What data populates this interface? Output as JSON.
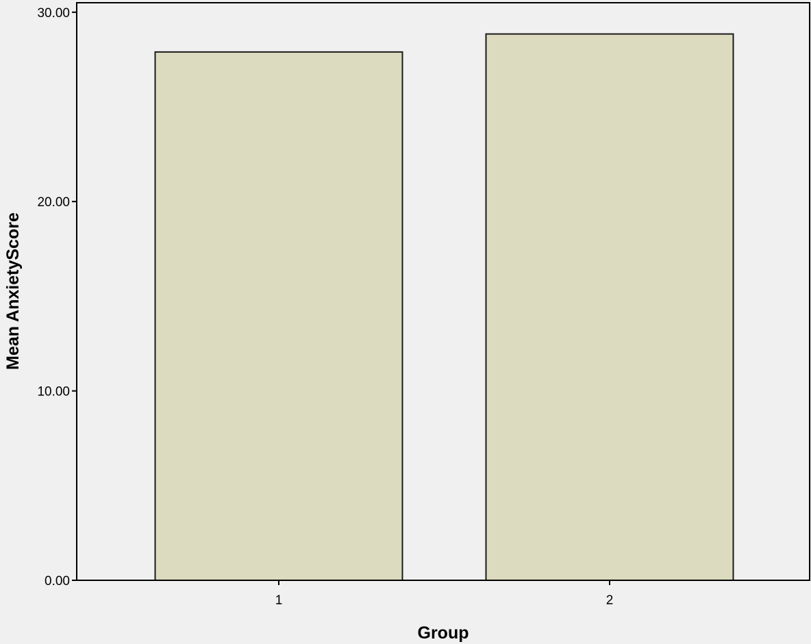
{
  "chart_data": {
    "type": "bar",
    "categories": [
      "1",
      "2"
    ],
    "values": [
      27.9,
      28.85
    ],
    "xlabel": "Group",
    "ylabel": "Mean AnxietyScore",
    "ylim": [
      0,
      30.5
    ],
    "yticks": [
      "0.00",
      "10.00",
      "20.00",
      "30.00"
    ],
    "grid": false,
    "legend": "none",
    "colors": {
      "bar_fill": "#dcdbbf",
      "bar_stroke": "#1a1a1a",
      "plot_background": "#f0f0f0",
      "axis": "#000000"
    }
  }
}
